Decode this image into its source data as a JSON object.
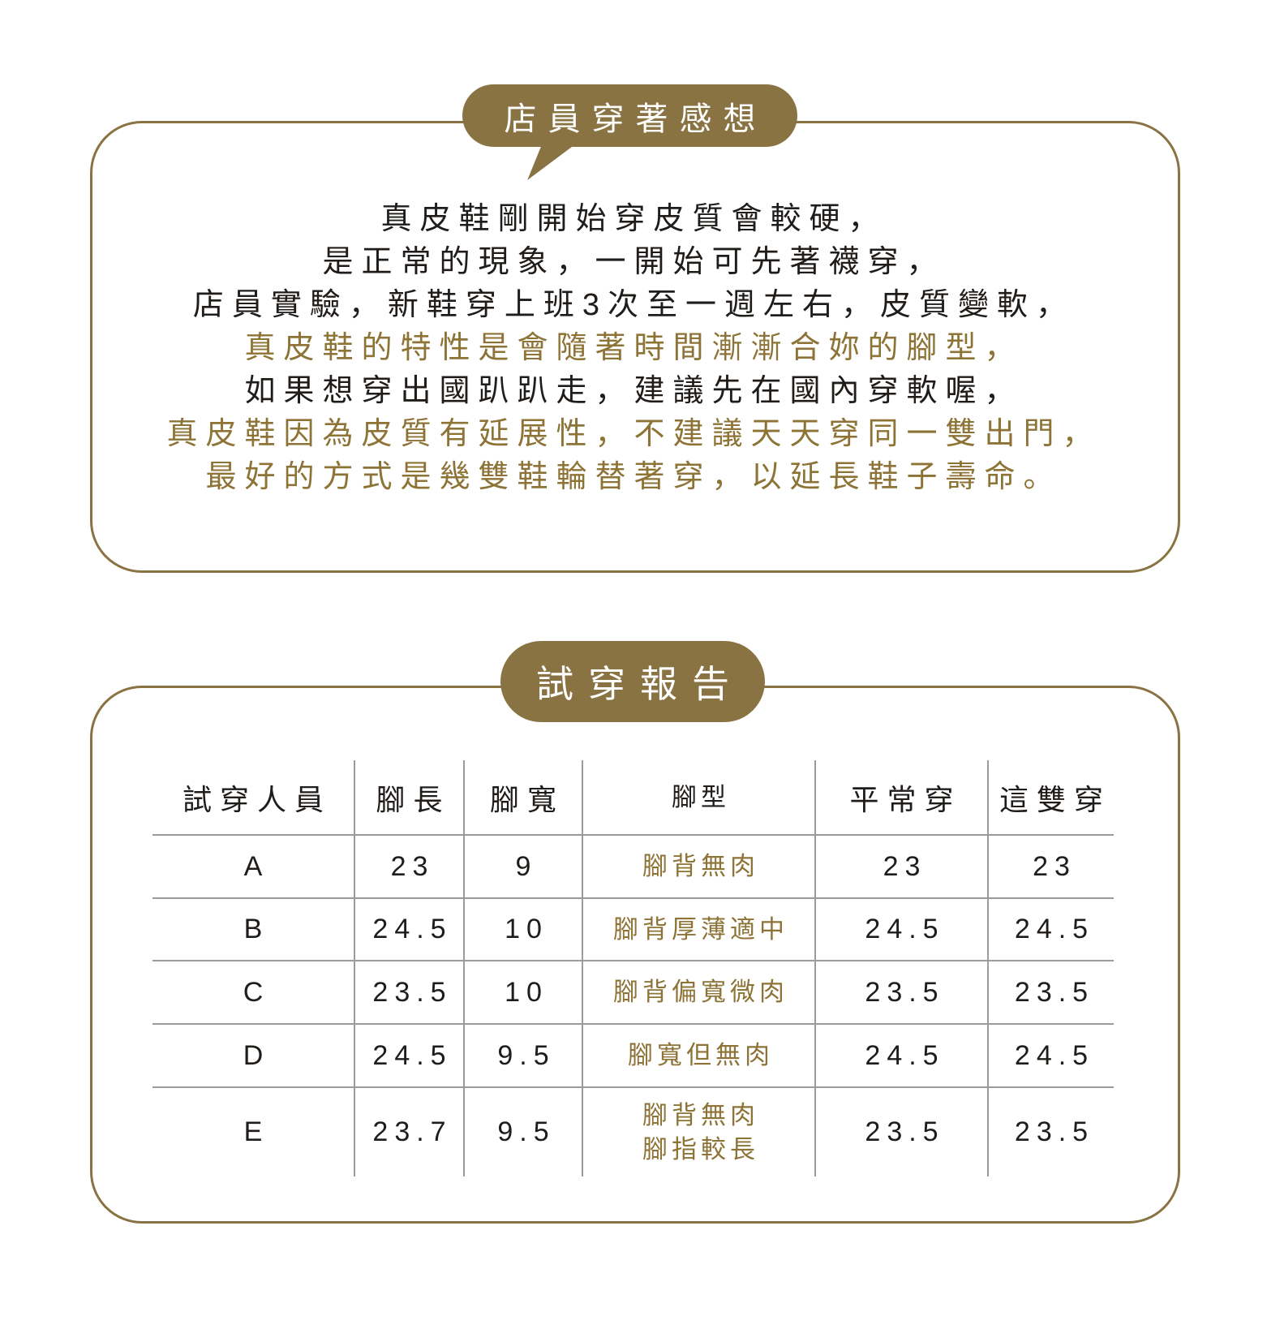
{
  "colors": {
    "gold_fill": "#8a7342",
    "gold_text": "#8e7336",
    "dark_text": "#1f1c1a",
    "table_line_gray": "#9b9b9b",
    "background": "#ffffff"
  },
  "impressions": {
    "title": "店員穿著感想",
    "lines": [
      {
        "text": "真皮鞋剛開始穿皮質會較硬，",
        "tone": "dark"
      },
      {
        "text": "是正常的現象，一開始可先著襪穿，",
        "tone": "dark"
      },
      {
        "text": "店員實驗，新鞋穿上班3次至一週左右，皮質變軟，",
        "tone": "dark"
      },
      {
        "text": "真皮鞋的特性是會隨著時間漸漸合妳的腳型，",
        "tone": "gold"
      },
      {
        "text": "如果想穿出國趴趴走，建議先在國內穿軟喔，",
        "tone": "dark"
      },
      {
        "text": "真皮鞋因為皮質有延展性，不建議天天穿同一雙出門，",
        "tone": "gold"
      },
      {
        "text": "最好的方式是幾雙鞋輪替著穿，以延長鞋子壽命。",
        "tone": "gold"
      }
    ]
  },
  "report": {
    "title": "試穿報告",
    "table": {
      "headers": [
        "試穿人員",
        "腳長",
        "腳寬",
        "腳型",
        "平常穿",
        "這雙穿"
      ],
      "rows": [
        [
          "A",
          "23",
          "9",
          "腳背無肉",
          "23",
          "23"
        ],
        [
          "B",
          "24.5",
          "10",
          "腳背厚薄適中",
          "24.5",
          "24.5"
        ],
        [
          "C",
          "23.5",
          "10",
          "腳背偏寬微肉",
          "23.5",
          "23.5"
        ],
        [
          "D",
          "24.5",
          "9.5",
          "腳寬但無肉",
          "24.5",
          "24.5"
        ],
        [
          "E",
          "23.7",
          "9.5",
          "腳背無肉\n腳指較長",
          "23.5",
          "23.5"
        ]
      ]
    }
  }
}
